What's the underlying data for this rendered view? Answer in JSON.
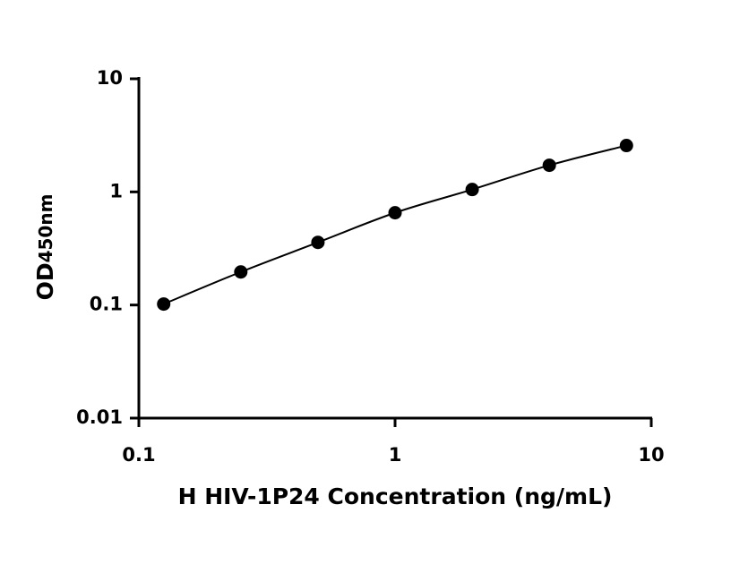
{
  "chart_data": {
    "type": "scatter",
    "x_label": "H HIV-1P24 Concentration (ng/mL)",
    "y_label": "OD",
    "y_label_sub": "450nm",
    "x": [
      0.125,
      0.25,
      0.5,
      1,
      2,
      4,
      8
    ],
    "values": [
      0.102,
      0.196,
      0.358,
      0.654,
      1.05,
      1.72,
      2.57
    ],
    "color": "#000000",
    "fit_line": true,
    "xlog": true,
    "ylog": true,
    "xlim": [
      0.1,
      10
    ],
    "ylim": [
      0.01,
      10
    ],
    "xticks": [
      0.1,
      1,
      10
    ],
    "yticks": [
      0.01,
      0.1,
      1,
      10
    ]
  }
}
